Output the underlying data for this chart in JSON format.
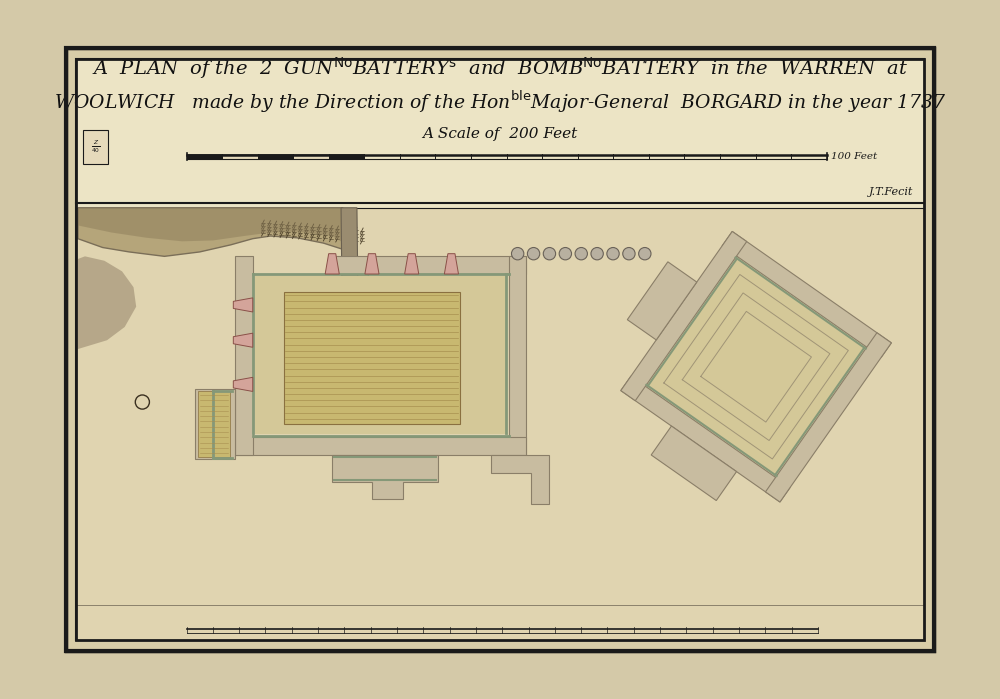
{
  "bg_outer": "#d4c9a8",
  "bg_paper": "#e8dfc0",
  "bg_map": "#e8dfc0",
  "title_line1": "A  PLAN  of the  2  GUN",
  "title_line2": "WOOLWICH",
  "border_color": "#2a2a2a",
  "scale_text": "A Scale of  200 Feet",
  "wall_color": "#b5a882",
  "wall_dark": "#8a7d60",
  "green_line": "#7a9070",
  "pink_fill": "#d4a898",
  "tan_fill": "#c8b888",
  "inner_fill": "#ddd0a8",
  "hatching_color": "#c4b070",
  "earth_color": "#9a8868",
  "right_structure_fill": "#ddd0a8",
  "cannon_ball_color": "#c8c0a8"
}
